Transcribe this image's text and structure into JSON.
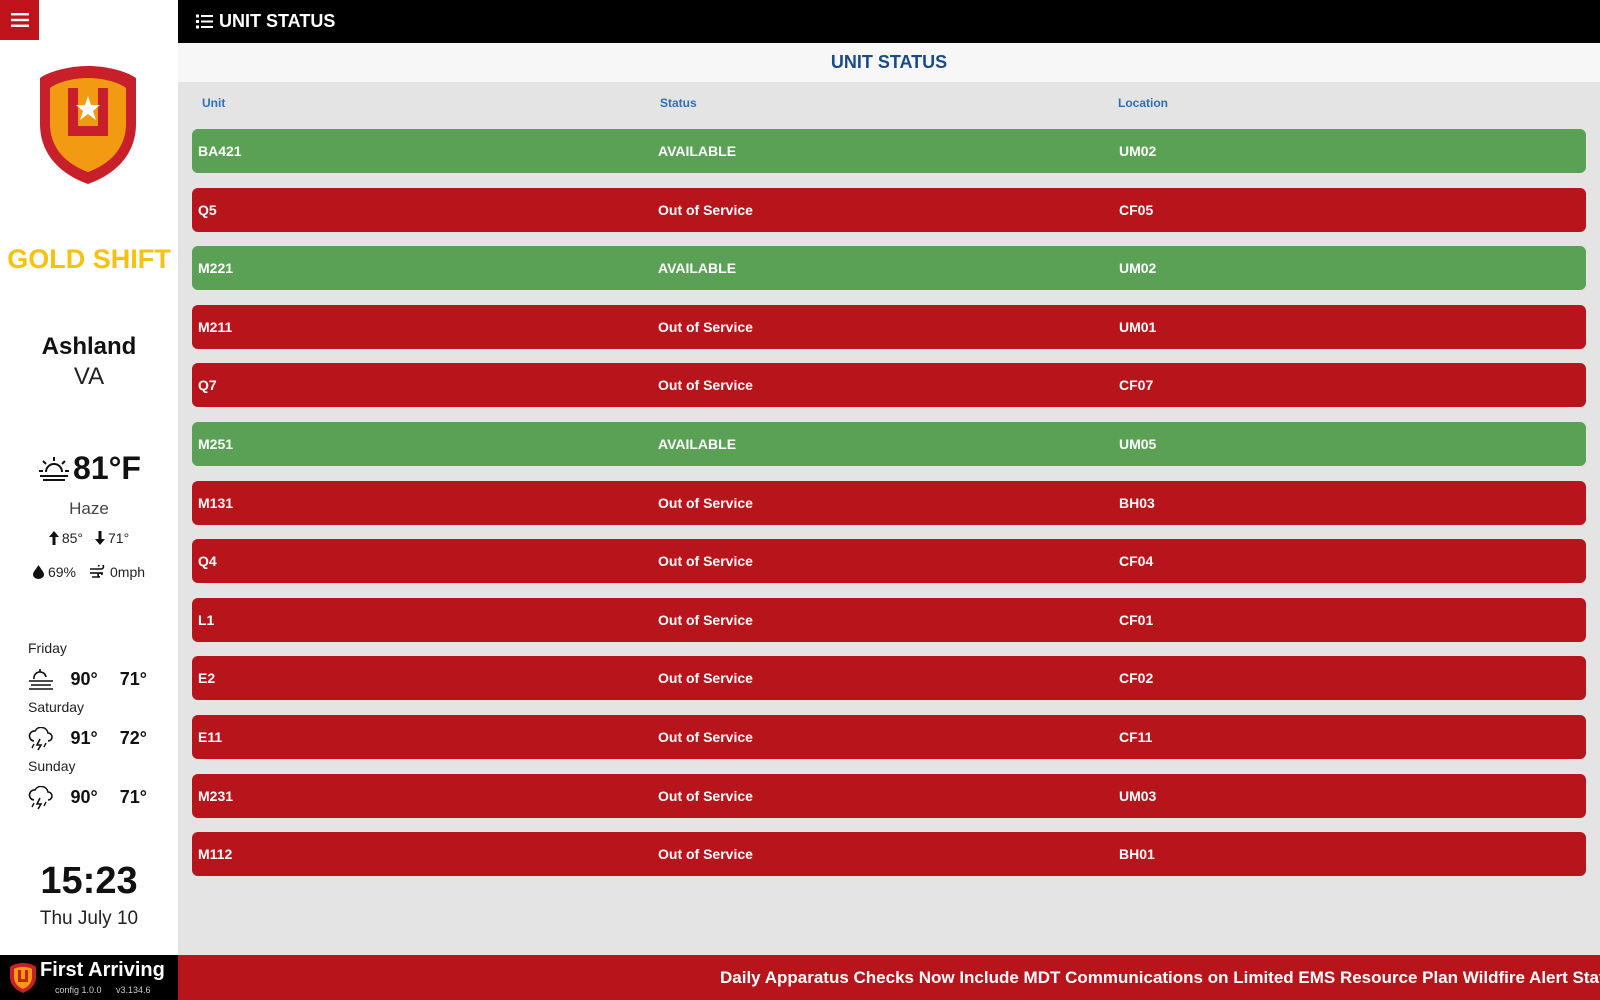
{
  "app": {
    "title": "UNIT STATUS"
  },
  "sidebar": {
    "shift": "GOLD SHIFT",
    "city": "Ashland",
    "state": "VA",
    "weather": {
      "temp": "81°F",
      "condition": "Haze",
      "high": "85°",
      "low": "71°",
      "humidity": "69%",
      "wind": "0mph",
      "forecast": [
        {
          "day": "Friday",
          "hi": "90°",
          "lo": "71°",
          "icon": "fog-icon"
        },
        {
          "day": "Saturday",
          "hi": "91°",
          "lo": "72°",
          "icon": "thunderstorm-icon"
        },
        {
          "day": "Sunday",
          "hi": "90°",
          "lo": "71°",
          "icon": "thunderstorm-icon"
        }
      ]
    },
    "time": "15:23",
    "date": "Thu July 10"
  },
  "main": {
    "heading": "UNIT STATUS",
    "columns": {
      "unit": "Unit",
      "status": "Status",
      "location": "Location"
    },
    "rows": [
      {
        "unit": "BA421",
        "status": "AVAILABLE",
        "location": "UM02",
        "color": "#5ba155"
      },
      {
        "unit": "Q5",
        "status": "Out of Service",
        "location": "CF05",
        "color": "#b8141c"
      },
      {
        "unit": "M221",
        "status": "AVAILABLE",
        "location": "UM02",
        "color": "#5ba155"
      },
      {
        "unit": "M211",
        "status": "Out of Service",
        "location": "UM01",
        "color": "#b8141c"
      },
      {
        "unit": "Q7",
        "status": "Out of Service",
        "location": "CF07",
        "color": "#b8141c"
      },
      {
        "unit": "M251",
        "status": "AVAILABLE",
        "location": "UM05",
        "color": "#5ba155"
      },
      {
        "unit": "M131",
        "status": "Out of Service",
        "location": "BH03",
        "color": "#b8141c"
      },
      {
        "unit": "Q4",
        "status": "Out of Service",
        "location": "CF04",
        "color": "#b8141c"
      },
      {
        "unit": "L1",
        "status": "Out of Service",
        "location": "CF01",
        "color": "#b8141c"
      },
      {
        "unit": "E2",
        "status": "Out of Service",
        "location": "CF02",
        "color": "#b8141c"
      },
      {
        "unit": "E11",
        "status": "Out of Service",
        "location": "CF11",
        "color": "#b8141c"
      },
      {
        "unit": "M231",
        "status": "Out of Service",
        "location": "UM03",
        "color": "#b8141c"
      },
      {
        "unit": "M112",
        "status": "Out of Service",
        "location": "BH01",
        "color": "#b8141c"
      }
    ]
  },
  "footer": {
    "brand": "First Arriving",
    "config": "config 1.0.0",
    "version": "v3.134.6",
    "ticker": "Daily Apparatus Checks Now Include MDT Communications on Limited EMS Resource Plan Wildfire Alert Status i"
  },
  "colors": {
    "available": "#5ba155",
    "out_of_service": "#b8141c",
    "accent": "#c0141c",
    "shift": "#f5c20e"
  }
}
